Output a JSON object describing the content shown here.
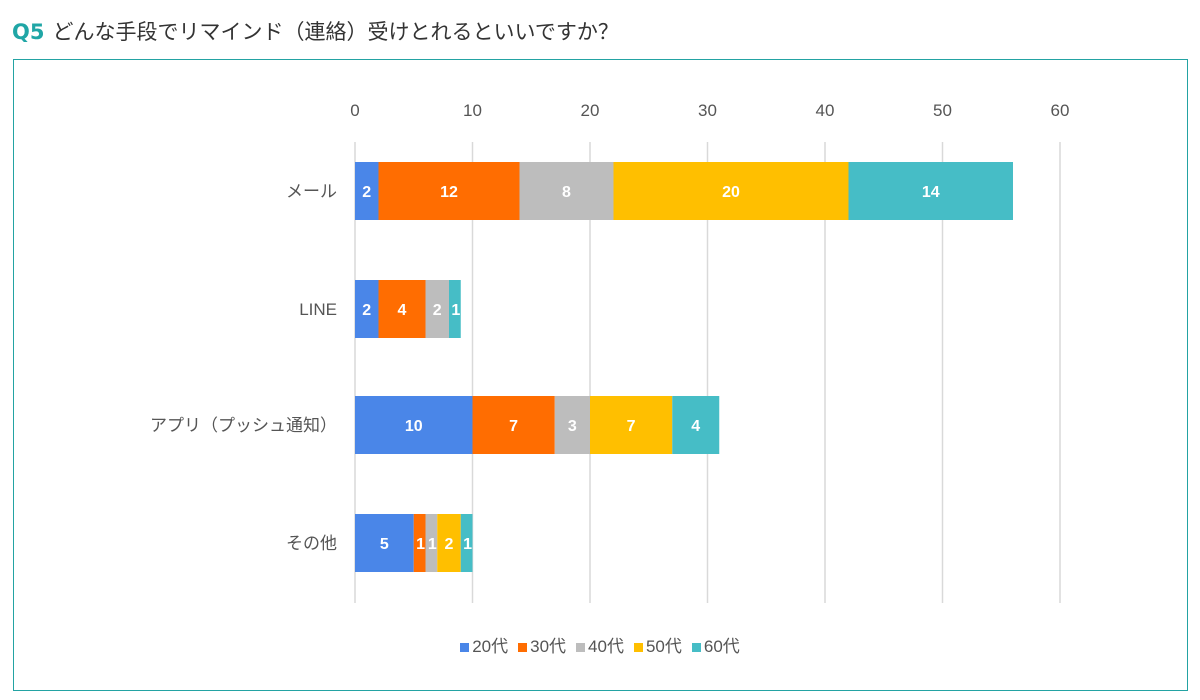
{
  "title": {
    "prefix": "Q5",
    "text": "どんな手段でリマインド（連絡）受けとれるといいですか？"
  },
  "chart_data": {
    "type": "bar",
    "orientation": "horizontal",
    "stacked": true,
    "categories": [
      "メール",
      "LINE",
      "アプリ（プッシュ通知）",
      "その他"
    ],
    "series": [
      {
        "name": "20代",
        "color": "#4a86e8",
        "values": [
          2,
          2,
          10,
          5
        ]
      },
      {
        "name": "30代",
        "color": "#ff6d01",
        "values": [
          12,
          4,
          7,
          1
        ]
      },
      {
        "name": "40代",
        "color": "#bdbdbd",
        "values": [
          8,
          2,
          3,
          1
        ]
      },
      {
        "name": "50代",
        "color": "#ffbf00",
        "values": [
          20,
          0,
          7,
          2
        ]
      },
      {
        "name": "60代",
        "color": "#46bdc6",
        "values": [
          14,
          1,
          4,
          1
        ]
      }
    ],
    "xlim": [
      0,
      60
    ],
    "xticks": [
      0,
      10,
      20,
      30,
      40,
      50,
      60
    ],
    "xaxis_position": "top",
    "grid": true,
    "data_labels": true,
    "legend": "bottom"
  }
}
